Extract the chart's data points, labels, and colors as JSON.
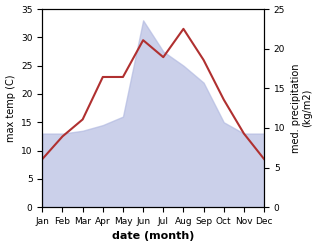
{
  "months": [
    "Jan",
    "Feb",
    "Mar",
    "Apr",
    "May",
    "Jun",
    "Jul",
    "Aug",
    "Sep",
    "Oct",
    "Nov",
    "Dec"
  ],
  "max_temp": [
    8.5,
    12.5,
    15.5,
    23.0,
    23.0,
    29.5,
    26.5,
    31.5,
    26.0,
    19.0,
    13.0,
    8.5
  ],
  "precipitation": [
    13.0,
    13.0,
    13.5,
    14.5,
    16.0,
    33.0,
    27.5,
    25.0,
    22.0,
    15.0,
    13.0,
    13.0
  ],
  "temp_color": "#b03030",
  "precip_fill_color": "#b0b8e0",
  "precip_fill_alpha": 0.65,
  "ylabel_left": "max temp (C)",
  "ylabel_right": "med. precipitation\n(kg/m2)",
  "xlabel": "date (month)",
  "ylim_left": [
    0,
    35
  ],
  "ylim_right": [
    0,
    25
  ],
  "yticks_left": [
    0,
    5,
    10,
    15,
    20,
    25,
    30,
    35
  ],
  "yticks_right": [
    0,
    5,
    10,
    15,
    20,
    25
  ],
  "bg_color": "#ffffff"
}
